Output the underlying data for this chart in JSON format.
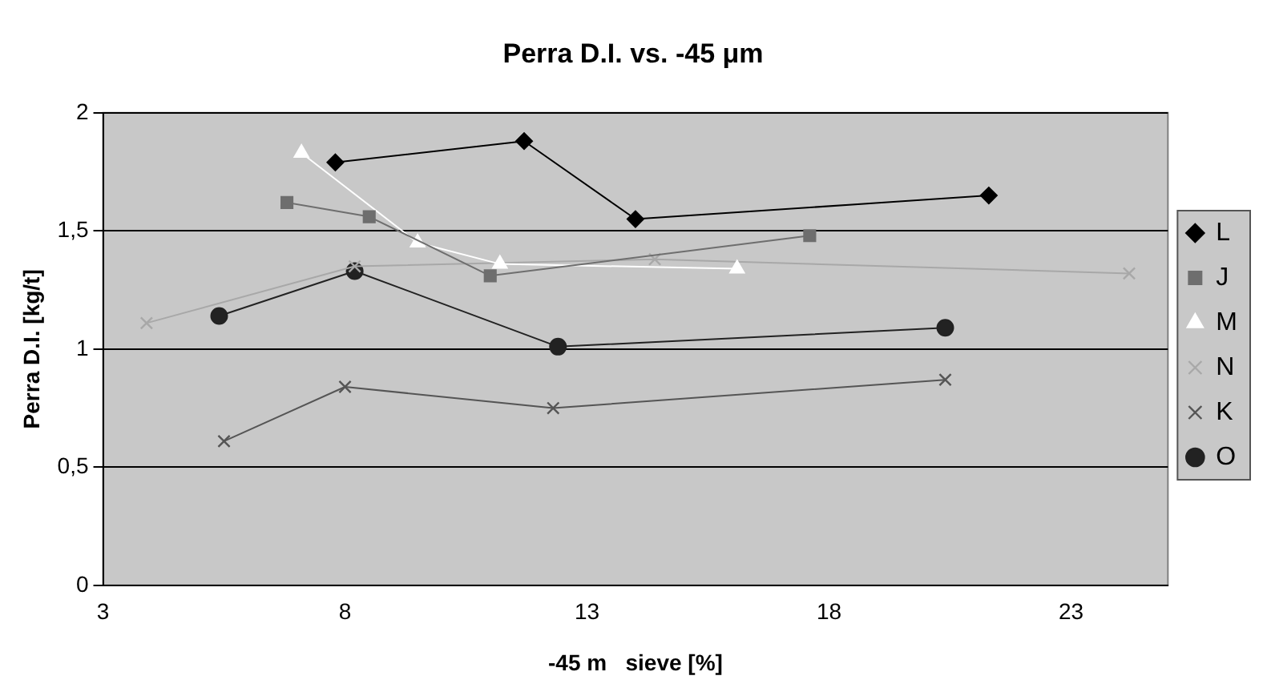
{
  "chart_data": {
    "type": "line",
    "title": "Perra D.I. vs. -45 μm",
    "xlabel": "-45 m   sieve [%]",
    "ylabel": "Perra D.I. [kg/t]",
    "xlim": [
      3,
      25
    ],
    "xticks": [
      3,
      8,
      13,
      18,
      23
    ],
    "ylim": [
      0,
      2
    ],
    "yticks": [
      0,
      {
        "value": 0.5,
        "label": "0,5"
      },
      1,
      {
        "value": 1.5,
        "label": "1,5"
      },
      2
    ],
    "grid": "y",
    "legend": "right",
    "series": [
      {
        "name": "L",
        "color": "#000000",
        "marker": "diamond",
        "x": [
          7.8,
          11.7,
          14.0,
          21.3
        ],
        "values": [
          1.79,
          1.88,
          1.55,
          1.65
        ]
      },
      {
        "name": "J",
        "color": "#6e6e6e",
        "marker": "square",
        "x": [
          6.8,
          8.5,
          11.0,
          17.6
        ],
        "values": [
          1.62,
          1.56,
          1.31,
          1.48
        ]
      },
      {
        "name": "M",
        "color": "#ffffff",
        "marker": "triangle",
        "x": [
          7.1,
          9.5,
          11.2,
          16.1
        ],
        "values": [
          1.83,
          1.45,
          1.36,
          1.34
        ]
      },
      {
        "name": "N",
        "color": "#a8a8a8",
        "marker": "cross",
        "x": [
          3.9,
          8.2,
          14.4,
          24.2
        ],
        "values": [
          1.11,
          1.35,
          1.38,
          1.32
        ]
      },
      {
        "name": "K",
        "color": "#555555",
        "marker": "cross",
        "x": [
          5.5,
          8.0,
          12.3,
          20.4
        ],
        "values": [
          0.61,
          0.84,
          0.75,
          0.87
        ]
      },
      {
        "name": "O",
        "color": "#222222",
        "marker": "circle",
        "x": [
          5.4,
          8.2,
          12.4,
          20.4
        ],
        "values": [
          1.14,
          1.33,
          1.01,
          1.09
        ]
      }
    ]
  }
}
